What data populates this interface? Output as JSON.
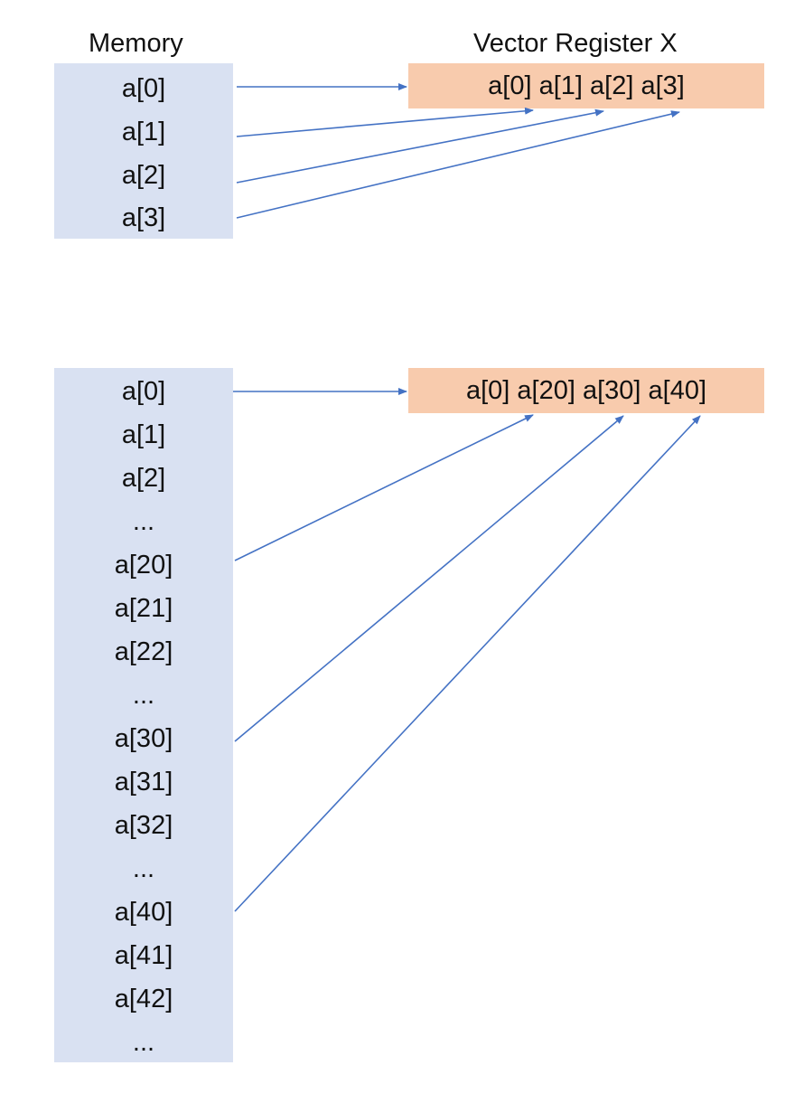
{
  "top": {
    "memory_title": "Memory",
    "register_title": "Vector Register X",
    "register_content": "a[0] a[1] a[2] a[3]",
    "memory_items": [
      "a[0]",
      "a[1]",
      "a[2]",
      "a[3]"
    ]
  },
  "bottom": {
    "register_content": "a[0] a[20] a[30] a[40]",
    "memory_items": [
      "a[0]",
      "a[1]",
      "a[2]",
      "...",
      "a[20]",
      "a[21]",
      "a[22]",
      "...",
      "a[30]",
      "a[31]",
      "a[32]",
      "...",
      "a[40]",
      "a[41]",
      "a[42]",
      "..."
    ]
  },
  "colors": {
    "memory_fill": "#d9e1f2",
    "register_fill": "#f8cbad",
    "arrow": "#4472c4"
  }
}
